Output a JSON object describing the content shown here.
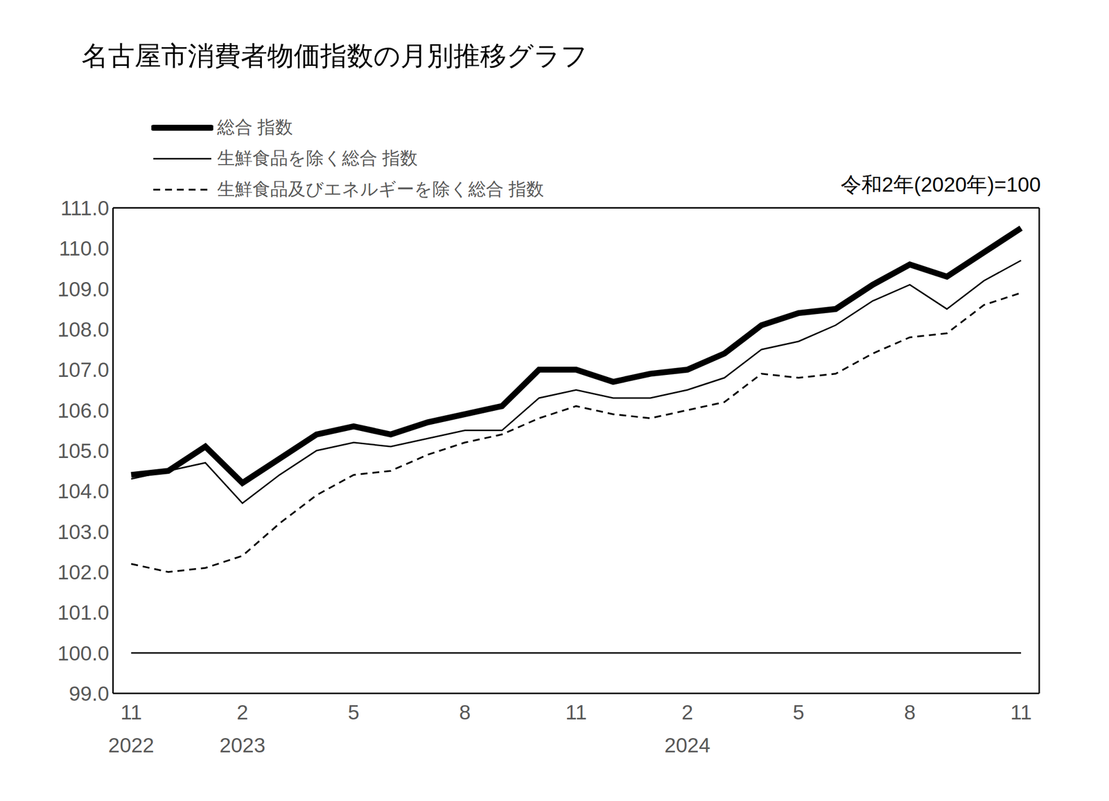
{
  "chart_data": {
    "type": "line",
    "title": "名古屋市消費者物価指数の月別推移グラフ",
    "note": "令和2年(2020年)=100",
    "categories": [
      "11",
      null,
      null,
      "2",
      null,
      null,
      "5",
      null,
      null,
      "8",
      null,
      null,
      "11",
      null,
      null,
      "2",
      null,
      null,
      "5",
      null,
      null,
      "8",
      null,
      null,
      "11"
    ],
    "year_labels": [
      "2022",
      null,
      null,
      "2023",
      null,
      null,
      null,
      null,
      null,
      null,
      null,
      null,
      null,
      null,
      null,
      "2024",
      null,
      null,
      null,
      null,
      null,
      null,
      null,
      null,
      null
    ],
    "ylim": [
      99,
      111
    ],
    "yticks": [
      {
        "value": 99,
        "label": "99.0"
      },
      {
        "value": 100,
        "label": "100.0"
      },
      {
        "value": 101,
        "label": "101.0"
      },
      {
        "value": 102,
        "label": "102.0"
      },
      {
        "value": 103,
        "label": "103.0"
      },
      {
        "value": 104,
        "label": "104.0"
      },
      {
        "value": 105,
        "label": "105.0"
      },
      {
        "value": 106,
        "label": "106.0"
      },
      {
        "value": 107,
        "label": "107.0"
      },
      {
        "value": 108,
        "label": "108.0"
      },
      {
        "value": 109,
        "label": "109.0"
      },
      {
        "value": 110,
        "label": "110.0"
      },
      {
        "value": 111,
        "label": "111.0"
      }
    ],
    "baseline": 100,
    "legend": "top left",
    "grid": false,
    "series": [
      {
        "name": "総合 指数",
        "color": "#000000",
        "line_style": "solid",
        "values": [
          104.4,
          104.5,
          105.1,
          104.2,
          104.8,
          105.4,
          105.6,
          105.4,
          105.7,
          105.9,
          106.1,
          107.0,
          107.0,
          106.7,
          106.9,
          107.0,
          107.4,
          108.1,
          108.4,
          108.5,
          109.1,
          109.6,
          109.3,
          109.9,
          110.5
        ]
      },
      {
        "name": "生鮮食品を除く総合 指数",
        "color": "#000000",
        "line_style": "solid",
        "values": [
          104.3,
          104.5,
          104.7,
          103.7,
          104.4,
          105.0,
          105.2,
          105.1,
          105.3,
          105.5,
          105.5,
          106.3,
          106.5,
          106.3,
          106.3,
          106.5,
          106.8,
          107.5,
          107.7,
          108.1,
          108.7,
          109.1,
          108.5,
          109.2,
          109.7
        ]
      },
      {
        "name": "生鮮食品及びエネルギーを除く総合 指数",
        "color": "#000000",
        "line_style": "dashed",
        "values": [
          102.2,
          102.0,
          102.1,
          102.4,
          103.2,
          103.9,
          104.4,
          104.5,
          104.9,
          105.2,
          105.4,
          105.8,
          106.1,
          105.9,
          105.8,
          106.0,
          106.2,
          106.9,
          106.8,
          106.9,
          107.4,
          107.8,
          107.9,
          108.6,
          108.9
        ]
      }
    ]
  }
}
